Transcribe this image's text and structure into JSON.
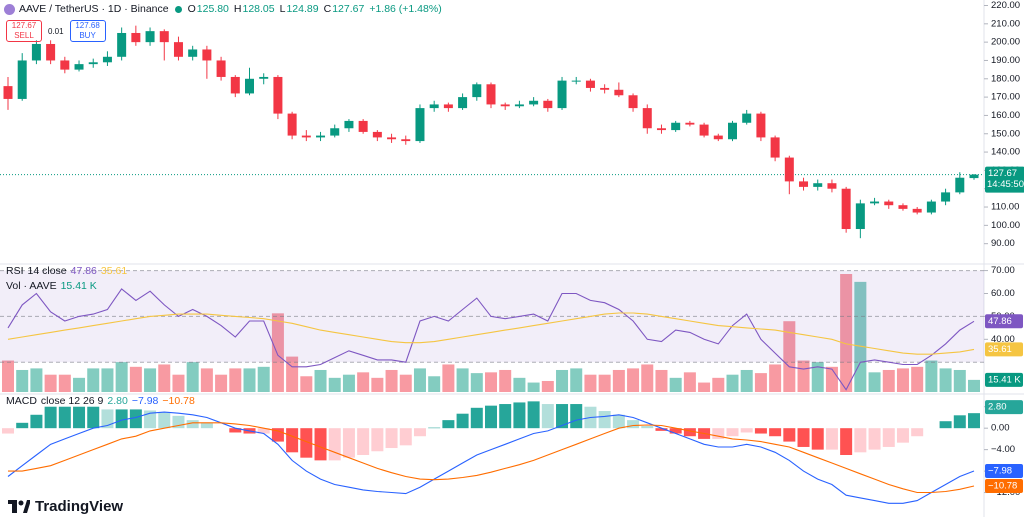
{
  "chart_data": [
    {
      "type": "candlestick",
      "title": "AAVE / TetherUS · 1D · Binance",
      "readout": [
        "O",
        "125.80",
        "H",
        "128.05",
        "L",
        "124.89",
        "C",
        "127.67",
        "+1.86 (+1.48%)"
      ],
      "trade": {
        "sell_price": "127.67",
        "sell": "SELL",
        "spread": "0.01",
        "buy_price": "127.68",
        "buy": "BUY"
      },
      "open": [
        176,
        169,
        190,
        199,
        190,
        185,
        188,
        189,
        192,
        205,
        200,
        206,
        200,
        192,
        196,
        190,
        181,
        172,
        180,
        181,
        161,
        149,
        148,
        149,
        153,
        157,
        151,
        148,
        147,
        146,
        164,
        166,
        164,
        170,
        177,
        166,
        165,
        166,
        168,
        164,
        179,
        179,
        175,
        174,
        171,
        164,
        153,
        152,
        156,
        155,
        149,
        147,
        156,
        161,
        148,
        137,
        124,
        121,
        123,
        120,
        98,
        112,
        113,
        111,
        109,
        107,
        113,
        118,
        125.8
      ],
      "high": [
        181,
        194,
        201,
        201,
        192,
        190,
        191,
        195,
        208,
        209,
        208,
        207,
        203,
        198,
        198,
        192,
        182,
        186,
        183,
        182,
        162,
        152,
        151,
        155,
        158,
        158,
        152,
        150,
        149,
        166,
        168,
        167,
        172,
        178,
        178,
        167,
        168,
        170,
        169,
        181,
        181,
        180,
        177,
        178,
        172,
        166,
        155,
        157,
        157,
        156,
        150,
        157,
        163,
        162,
        149,
        138,
        126,
        125,
        125,
        121,
        114,
        115,
        114,
        112,
        110,
        114,
        120,
        129,
        128.05
      ],
      "low": [
        163,
        168,
        188,
        188,
        183,
        184,
        186,
        187,
        190,
        198,
        198,
        190,
        190,
        190,
        180,
        179,
        170,
        171,
        177,
        158,
        147,
        146,
        146,
        148,
        151,
        150,
        146,
        145,
        144,
        145,
        162,
        162,
        163,
        168,
        164,
        163,
        164,
        165,
        162,
        163,
        177,
        173,
        172,
        170,
        162,
        150,
        150,
        151,
        154,
        148,
        146,
        146,
        155,
        146,
        135,
        117,
        119,
        119,
        118,
        96,
        93,
        111,
        109,
        108,
        106,
        106,
        111,
        117,
        124.89
      ],
      "close": [
        169,
        190,
        199,
        190,
        185,
        188,
        189,
        192,
        205,
        200,
        206,
        200,
        192,
        196,
        190,
        181,
        172,
        180,
        181,
        161,
        149,
        148,
        149,
        153,
        157,
        151,
        148,
        147,
        146,
        164,
        166,
        164,
        170,
        177,
        166,
        165,
        166,
        168,
        164,
        179,
        179,
        175,
        174,
        171,
        164,
        153,
        152,
        156,
        155,
        149,
        147,
        156,
        161,
        148,
        137,
        124,
        121,
        123,
        120,
        98,
        112,
        113,
        111,
        109,
        107,
        113,
        118,
        126,
        127.67
      ],
      "up_color": "#089981",
      "down_color": "#f23645",
      "ylim": [
        80,
        223
      ],
      "yticks": [
        {
          "value": 90,
          "label": "90.00"
        },
        {
          "value": 100,
          "label": "100.00"
        },
        {
          "value": 110,
          "label": "110.00"
        },
        {
          "value": 120,
          "label": "120.00"
        },
        {
          "value": 130,
          "label": "130.00"
        },
        {
          "value": 140,
          "label": "140.00"
        },
        {
          "value": 150,
          "label": "150.00"
        },
        {
          "value": 160,
          "label": "160.00"
        },
        {
          "value": 170,
          "label": "170.00"
        },
        {
          "value": 180,
          "label": "180.00"
        },
        {
          "value": 190,
          "label": "190.00"
        },
        {
          "value": 200,
          "label": "200.00"
        },
        {
          "value": 210,
          "label": "210.00"
        },
        {
          "value": 220,
          "label": "220.00"
        }
      ],
      "last_price": {
        "value": 127.67,
        "label": "127.67"
      },
      "countdown": "14:45:50",
      "watermark": "TradingView"
    },
    {
      "type": "bar",
      "title": "Vol · AAVE",
      "readout": "15.41 K",
      "values": [
        40,
        28,
        30,
        22,
        22,
        18,
        30,
        30,
        38,
        32,
        30,
        35,
        22,
        38,
        30,
        22,
        30,
        30,
        32,
        100,
        45,
        20,
        28,
        18,
        22,
        25,
        18,
        28,
        22,
        30,
        20,
        35,
        30,
        24,
        25,
        28,
        18,
        12,
        14,
        28,
        30,
        22,
        22,
        28,
        30,
        35,
        28,
        18,
        25,
        12,
        18,
        22,
        28,
        24,
        35,
        90,
        40,
        38,
        32,
        150,
        140,
        25,
        28,
        30,
        32,
        40,
        30,
        28,
        15.41
      ],
      "up_color": "#089981",
      "down_color": "#f23645"
    },
    {
      "type": "line",
      "title": "RSI",
      "subtitle": "14 close",
      "series": [
        {
          "color": "#7e57c2",
          "readout": "47.86",
          "values": [
            45,
            55,
            60,
            52,
            48,
            50,
            51,
            53,
            62,
            57,
            61,
            55,
            50,
            53,
            50,
            46,
            41,
            48,
            48,
            33,
            28,
            28,
            29,
            32,
            35,
            33,
            31,
            31,
            30,
            48,
            50,
            48,
            53,
            58,
            50,
            49,
            50,
            51,
            48,
            60,
            60,
            57,
            56,
            53,
            48,
            40,
            39,
            44,
            43,
            40,
            38,
            46,
            51,
            40,
            34,
            28,
            27,
            28,
            27,
            18,
            30,
            31,
            30,
            29,
            29,
            33,
            38,
            44,
            47.86
          ]
        },
        {
          "color": "#f5c542",
          "readout": "35.61",
          "values": [
            40,
            41,
            42,
            43,
            44,
            45,
            46,
            47,
            48,
            49,
            50,
            50.5,
            51,
            51,
            51,
            50.5,
            50,
            49.5,
            49,
            48,
            47,
            45.5,
            44,
            43,
            42,
            41,
            40,
            39,
            38.5,
            38.5,
            39,
            40,
            41,
            42,
            43,
            44,
            45,
            46,
            47,
            48,
            49,
            50,
            51,
            51.5,
            51.5,
            51,
            50,
            49,
            48,
            47,
            46,
            45.5,
            45,
            44.5,
            44,
            43,
            42,
            41,
            40,
            38,
            37,
            36,
            35,
            34,
            33.5,
            33.5,
            34,
            34.5,
            35.61
          ]
        }
      ],
      "ylim": [
        17,
        72
      ],
      "yticks": [
        {
          "value": 40,
          "label": "40.00"
        },
        {
          "value": 50,
          "label": "50.00"
        },
        {
          "value": 60,
          "label": "60.00"
        },
        {
          "value": 70,
          "label": "70.00"
        }
      ],
      "bands": [
        30,
        50,
        70
      ],
      "band_fill": "#7e57c2"
    },
    {
      "type": "macd",
      "title": "MACD",
      "subtitle": "close 12 26 9",
      "histogram": {
        "readout": "2.80",
        "colors": [
          "#26a69a",
          "#b2dfdb",
          "#ffcdd2",
          "#ff5252"
        ],
        "values": [
          -1,
          1,
          2.5,
          4,
          4,
          4,
          4,
          3.5,
          3.5,
          3.5,
          3.3,
          3,
          2.3,
          1.5,
          1,
          0,
          -0.8,
          -1,
          -1,
          -2.5,
          -4.5,
          -5.5,
          -6,
          -6,
          -5.5,
          -5,
          -4.3,
          -3.7,
          -3.2,
          -1.5,
          0.1,
          1.5,
          2.7,
          3.8,
          4.2,
          4.5,
          4.8,
          5,
          4.5,
          4.5,
          4.5,
          4,
          3.2,
          2.5,
          1.5,
          0.4,
          -0.5,
          -1,
          -1.5,
          -2,
          -2,
          -1.5,
          -0.8,
          -1,
          -1.5,
          -2.5,
          -3.5,
          -4,
          -4,
          -5,
          -4.5,
          -4,
          -3.5,
          -2.7,
          -1.5,
          0,
          1.3,
          2.4,
          2.8
        ]
      },
      "series": [
        {
          "color": "#2962ff",
          "readout": "−7.98",
          "values": [
            -9,
            -7,
            -5,
            -3,
            -2,
            -1,
            0,
            0.5,
            1.5,
            2,
            2.8,
            3,
            2.8,
            2.5,
            2,
            1,
            0,
            -0.5,
            -1,
            -3,
            -6,
            -8,
            -9.5,
            -10.5,
            -11,
            -11.5,
            -11.8,
            -12,
            -12.2,
            -11,
            -9.5,
            -8,
            -6.5,
            -5,
            -4,
            -3,
            -2,
            -1,
            -0.5,
            0.5,
            1.5,
            2,
            2.2,
            2.5,
            2,
            1,
            0,
            -1,
            -2,
            -3,
            -3.5,
            -3.5,
            -3,
            -3.5,
            -4.5,
            -6,
            -8,
            -9.5,
            -10.5,
            -12.5,
            -13,
            -13.5,
            -14,
            -14,
            -13.5,
            -12,
            -10.5,
            -9,
            -7.98
          ]
        },
        {
          "color": "#ff6d00",
          "readout": "−10.78",
          "values": [
            -8,
            -8,
            -7.5,
            -7,
            -6,
            -5,
            -4,
            -3,
            -2,
            -1.5,
            -0.5,
            0,
            0.5,
            1,
            1,
            1,
            0.8,
            0.5,
            0,
            -0.5,
            -1.5,
            -2.5,
            -3.5,
            -4.5,
            -5.5,
            -6.5,
            -7.5,
            -8.3,
            -9,
            -9.5,
            -9.6,
            -9.5,
            -9.2,
            -8.8,
            -8.2,
            -7.5,
            -6.8,
            -6,
            -5,
            -4,
            -3,
            -2,
            -1,
            0,
            0.5,
            0.6,
            0.5,
            0,
            -0.5,
            -1,
            -1.5,
            -2,
            -2.2,
            -2.5,
            -3,
            -3.5,
            -4.5,
            -5.5,
            -6.5,
            -7.5,
            -8.5,
            -9.5,
            -10.5,
            -11.3,
            -12,
            -12,
            -11.8,
            -11.4,
            -10.78
          ]
        }
      ],
      "ylim": [
        -16,
        6
      ],
      "yticks": [
        {
          "value": 4,
          "label": "4.00"
        },
        {
          "value": 0,
          "label": "0.00"
        },
        {
          "value": -4,
          "label": "−4.00"
        },
        {
          "value": -8,
          "label": "−8.00"
        },
        {
          "value": -12,
          "label": "−12.00"
        }
      ]
    }
  ]
}
